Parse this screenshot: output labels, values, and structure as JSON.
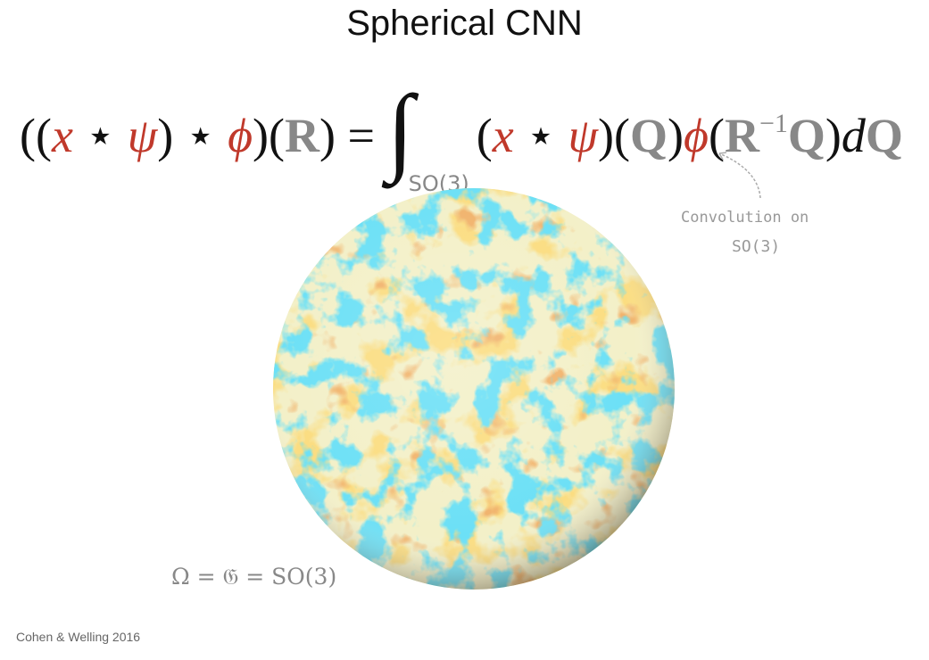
{
  "title": "Spherical CNN",
  "formula": {
    "lhs": [
      "((",
      "x",
      " ⋆ ",
      "ψ",
      ") ⋆ ",
      "ϕ",
      ")(",
      "R",
      ") = "
    ],
    "integral": "∫",
    "subscript": "SO(3)",
    "rhs": [
      "(",
      "x",
      " ⋆ ",
      "ψ",
      ")(",
      "Q",
      ")",
      "ϕ",
      "(",
      "R",
      "−1",
      "Q",
      ")",
      "d",
      "Q"
    ]
  },
  "annotation": {
    "line1": "Convolution on",
    "line2": "SO(3)"
  },
  "sphere_label": "Ω = 𝔊 = SO(3)",
  "citation": "Cohen & Welling 2016"
}
